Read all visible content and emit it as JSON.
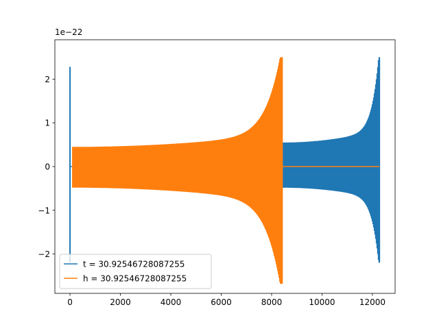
{
  "chart_data": {
    "type": "line",
    "title": "",
    "xlabel": "",
    "ylabel": "",
    "offset_label": "1e−22",
    "xlim": [
      -600,
      12900
    ],
    "ylim": [
      -2.9,
      2.9
    ],
    "x_ticks": [
      0,
      2000,
      4000,
      6000,
      8000,
      10000,
      12000
    ],
    "x_tick_labels": [
      "0",
      "2000",
      "4000",
      "6000",
      "8000",
      "10000",
      "12000"
    ],
    "y_ticks": [
      -2,
      -1,
      0,
      1,
      2
    ],
    "y_tick_labels": [
      "−2",
      "−1",
      "0",
      "1",
      "2"
    ],
    "grid": false,
    "legend_position": "lower-left",
    "series": [
      {
        "name": "t = 30.92546728087255",
        "color": "#1f77b4",
        "spike": {
          "x": 0,
          "min": -2.2,
          "max": 2.28
        },
        "chirp": {
          "start": 8450,
          "end": 12280,
          "start_amplitude": 0.55,
          "end_amplitude": 2.5,
          "end_min": -2.2
        },
        "quiet_value": 0
      },
      {
        "name": "h = 30.92546728087255",
        "color": "#ff7f0e",
        "chirp": {
          "start": 100,
          "end": 8430,
          "start_amplitude": 0.45,
          "end_amplitude": 2.5,
          "end_min": -2.68
        },
        "quiet_value": 0,
        "quiet_end": 12280
      }
    ]
  }
}
